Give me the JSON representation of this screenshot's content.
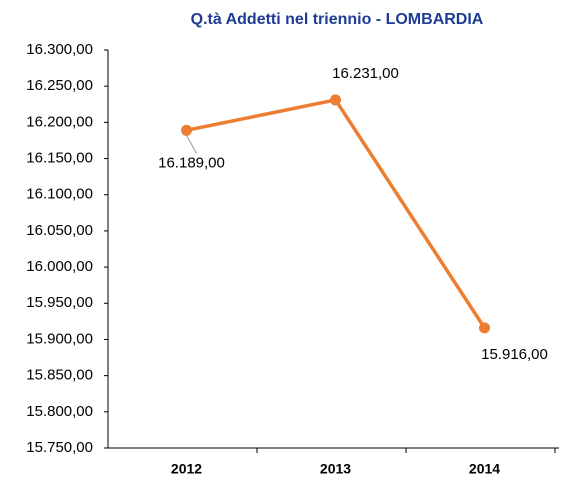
{
  "chart_data": {
    "type": "line",
    "title": "Q.tà Addetti nel triennio - LOMBARDIA",
    "categories": [
      "2012",
      "2013",
      "2014"
    ],
    "series": [
      {
        "name": "LOMBARDIA",
        "color": "#ed7d31",
        "values": [
          16189,
          16231,
          15916
        ],
        "value_labels": [
          "16.189,00",
          "16.231,00",
          "15.916,00"
        ]
      }
    ],
    "ylim": [
      15750,
      16300
    ],
    "yticks": [
      {
        "value": 15750,
        "label": "15.750,00"
      },
      {
        "value": 15800,
        "label": "15.800,00"
      },
      {
        "value": 15850,
        "label": "15.850,00"
      },
      {
        "value": 15900,
        "label": "15.900,00"
      },
      {
        "value": 15950,
        "label": "15.950,00"
      },
      {
        "value": 16000,
        "label": "16.000,00"
      },
      {
        "value": 16050,
        "label": "16.050,00"
      },
      {
        "value": 16100,
        "label": "16.100,00"
      },
      {
        "value": 16150,
        "label": "16.150,00"
      },
      {
        "value": 16200,
        "label": "16.200,00"
      },
      {
        "value": 16250,
        "label": "16.250,00"
      },
      {
        "value": 16300,
        "label": "16.300,00"
      }
    ],
    "grid": false
  }
}
